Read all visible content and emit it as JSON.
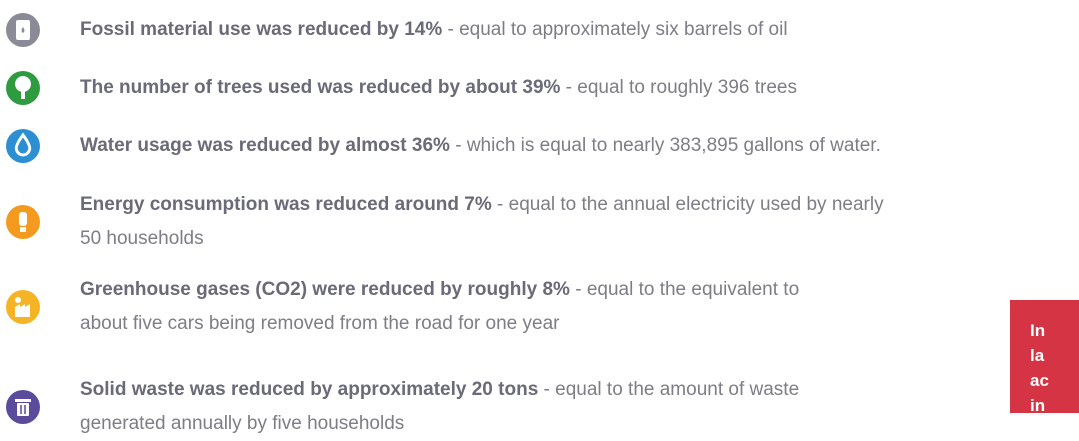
{
  "items": [
    {
      "bold": "Fossil material use was reduced by 14%",
      "rest": " - equal to approximately six barrels of oil"
    },
    {
      "bold": "The number of trees used was reduced by about 39%",
      "rest": " - equal to roughly 396 trees"
    },
    {
      "bold": "Water usage was reduced by almost 36%",
      "rest": " - which is equal to nearly 383,895 gallons of water."
    },
    {
      "bold": "Energy consumption was reduced around 7%",
      "rest": " - equal to the annual electricity used by nearly",
      "continuation": "50 households"
    },
    {
      "bold": "Greenhouse gases (CO2) were reduced by roughly 8%",
      "rest": " - equal to the equivalent to",
      "continuation": "about five cars being removed from the road for one year"
    },
    {
      "bold": "Solid waste was reduced by approximately 20 tons",
      "rest": " - equal to the amount of waste",
      "continuation": "generated annually by five households"
    }
  ],
  "callout": {
    "lines": [
      "In",
      "la",
      "ac",
      "in"
    ]
  }
}
